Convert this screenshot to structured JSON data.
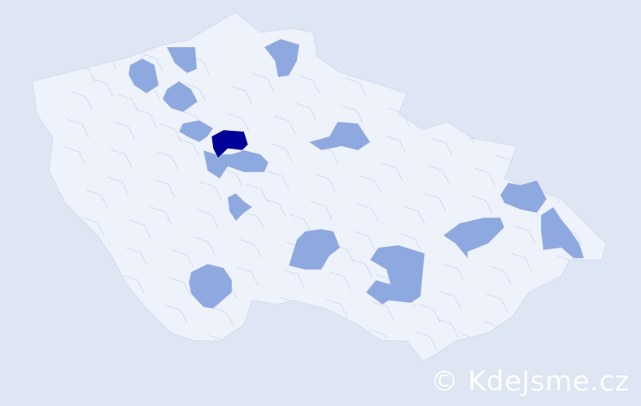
{
  "map": {
    "colors": {
      "background": "#dde6f2",
      "base": "#eef2fb",
      "border": "#d3dcef",
      "level_medium": "#8ea8e0",
      "level_high": "#000099"
    },
    "highlighted_district_levels": [
      "high",
      "medium",
      "medium",
      "medium",
      "medium",
      "medium",
      "medium",
      "medium",
      "medium",
      "medium",
      "medium",
      "medium",
      "medium",
      "medium",
      "medium"
    ]
  },
  "watermark": "© KdeJsme.cz"
}
